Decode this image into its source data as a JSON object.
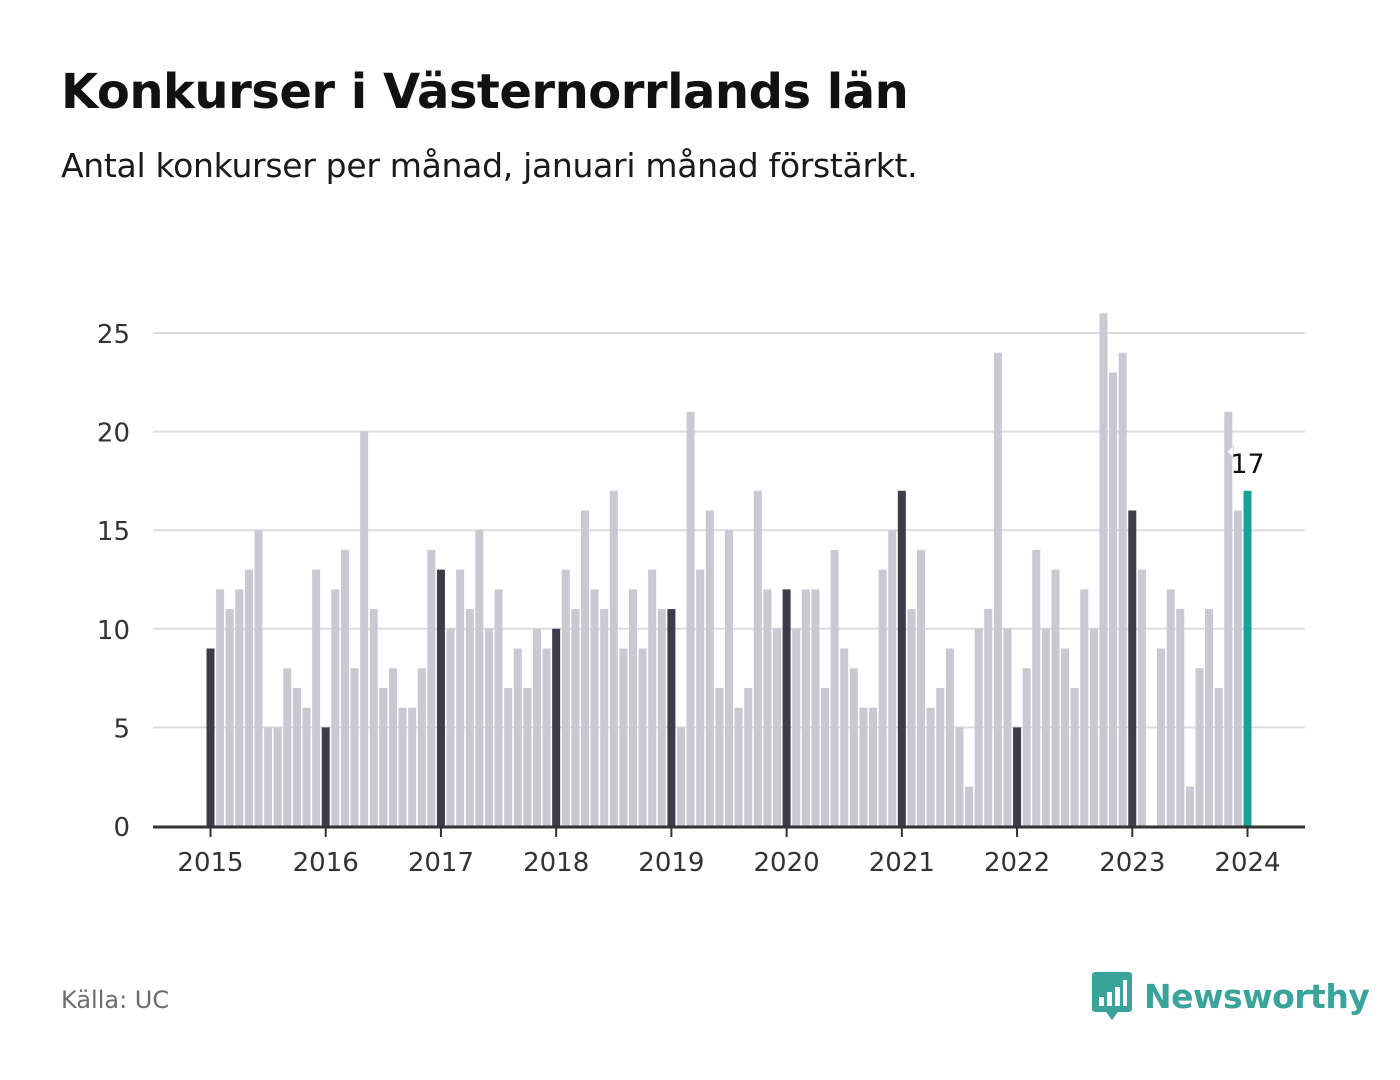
{
  "header": {
    "title": "Konkurser i Västernorrlands län",
    "subtitle": "Antal konkurser per månad, januari månad förstärkt."
  },
  "footer": {
    "source": "Källa: UC",
    "brand": "Newsworthy",
    "brand_icon": "bar-chart-speech-bubble-icon"
  },
  "colors": {
    "bar": "#c9c8d3",
    "january": "#3d3c4b",
    "latest": "#16a39a",
    "grid": "#dddddd",
    "axis": "#333333",
    "brand": "#3aa39a"
  },
  "chart_data": {
    "type": "bar",
    "title": "Konkurser i Västernorrlands län",
    "subtitle": "Antal konkurser per månad, januari månad förstärkt.",
    "xlabel": "",
    "ylabel": "",
    "ylim": [
      0,
      26
    ],
    "yticks": [
      0,
      5,
      10,
      15,
      20,
      25
    ],
    "grid": true,
    "start_month": "2015-01",
    "end_month": "2024-01",
    "year_ticks": [
      "2015",
      "2016",
      "2017",
      "2018",
      "2019",
      "2020",
      "2021",
      "2022",
      "2023",
      "2024"
    ],
    "highlight": "january bars dark, latest bar teal",
    "annotation": {
      "label": "17",
      "month": "2024-01"
    },
    "values": [
      9,
      12,
      11,
      12,
      13,
      15,
      5,
      5,
      8,
      7,
      6,
      13,
      5,
      12,
      14,
      8,
      20,
      11,
      7,
      8,
      6,
      6,
      8,
      14,
      13,
      10,
      13,
      11,
      15,
      10,
      12,
      7,
      9,
      7,
      10,
      9,
      10,
      13,
      11,
      16,
      12,
      11,
      17,
      9,
      12,
      9,
      13,
      11,
      11,
      5,
      21,
      13,
      16,
      7,
      15,
      6,
      7,
      17,
      12,
      10,
      12,
      10,
      12,
      12,
      7,
      14,
      9,
      8,
      6,
      6,
      13,
      15,
      17,
      11,
      14,
      6,
      7,
      9,
      5,
      2,
      10,
      11,
      24,
      10,
      5,
      8,
      14,
      10,
      13,
      9,
      7,
      12,
      10,
      26,
      23,
      24,
      16,
      13,
      0,
      9,
      12,
      11,
      2,
      8,
      11,
      7,
      21,
      16,
      17
    ]
  }
}
